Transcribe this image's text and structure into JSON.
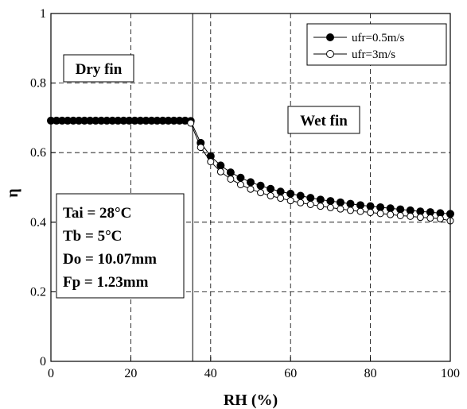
{
  "chart_data": {
    "type": "line",
    "xlabel": "RH (%)",
    "ylabel": "η",
    "xlim": [
      0,
      100
    ],
    "ylim": [
      0,
      1
    ],
    "xticks": [
      0,
      20,
      40,
      60,
      80,
      100
    ],
    "yticks": [
      0,
      0.2,
      0.4,
      0.6,
      0.8,
      1
    ],
    "tick_labels_x": [
      "0",
      "20",
      "40",
      "60",
      "80",
      "100"
    ],
    "tick_labels_y": [
      "0",
      "0.2",
      "0.4",
      "0.6",
      "0.8",
      "1"
    ],
    "grid": true,
    "legend_position": "top-right",
    "vertical_line_x": 35.5,
    "series": [
      {
        "name": "ufr=0.5m/s",
        "marker": "filled-circle",
        "x": [
          0,
          1.4,
          2.8,
          4.2,
          5.6,
          7,
          8.4,
          9.8,
          11.2,
          12.6,
          14,
          15.4,
          16.8,
          18.2,
          19.6,
          21,
          22.4,
          23.8,
          25.2,
          26.6,
          28,
          29.4,
          30.8,
          32.2,
          33.6,
          35,
          37.5,
          40,
          42.5,
          45,
          47.5,
          50,
          52.5,
          55,
          57.5,
          60,
          62.5,
          65,
          67.5,
          70,
          72.5,
          75,
          77.5,
          80,
          82.5,
          85,
          87.5,
          90,
          92.5,
          95,
          97.5,
          100
        ],
        "y": [
          0.692,
          0.692,
          0.692,
          0.692,
          0.692,
          0.692,
          0.692,
          0.692,
          0.692,
          0.692,
          0.692,
          0.692,
          0.692,
          0.692,
          0.692,
          0.692,
          0.692,
          0.692,
          0.692,
          0.692,
          0.692,
          0.692,
          0.692,
          0.692,
          0.692,
          0.691,
          0.628,
          0.59,
          0.563,
          0.543,
          0.528,
          0.515,
          0.505,
          0.496,
          0.488,
          0.482,
          0.476,
          0.47,
          0.465,
          0.461,
          0.457,
          0.453,
          0.449,
          0.446,
          0.443,
          0.44,
          0.437,
          0.434,
          0.431,
          0.429,
          0.426,
          0.424
        ]
      },
      {
        "name": "ufr=3m/s",
        "marker": "open-circle",
        "x": [
          35,
          37.5,
          40,
          42.5,
          45,
          47.5,
          50,
          52.5,
          55,
          57.5,
          60,
          62.5,
          65,
          67.5,
          70,
          72.5,
          75,
          77.5,
          80,
          82.5,
          85,
          87.5,
          90,
          92.5,
          95,
          97.5,
          100
        ],
        "y": [
          0.685,
          0.615,
          0.574,
          0.545,
          0.524,
          0.508,
          0.495,
          0.485,
          0.476,
          0.469,
          0.462,
          0.456,
          0.451,
          0.446,
          0.442,
          0.438,
          0.434,
          0.431,
          0.428,
          0.425,
          0.422,
          0.419,
          0.417,
          0.414,
          0.412,
          0.41,
          0.404
        ]
      }
    ],
    "annotations": {
      "dry_fin": "Dry fin",
      "wet_fin": "Wet fin",
      "params": [
        "Tai = 28°C",
        "Tb = 5°C",
        "Do = 10.07mm",
        "Fp = 1.23mm"
      ]
    }
  }
}
